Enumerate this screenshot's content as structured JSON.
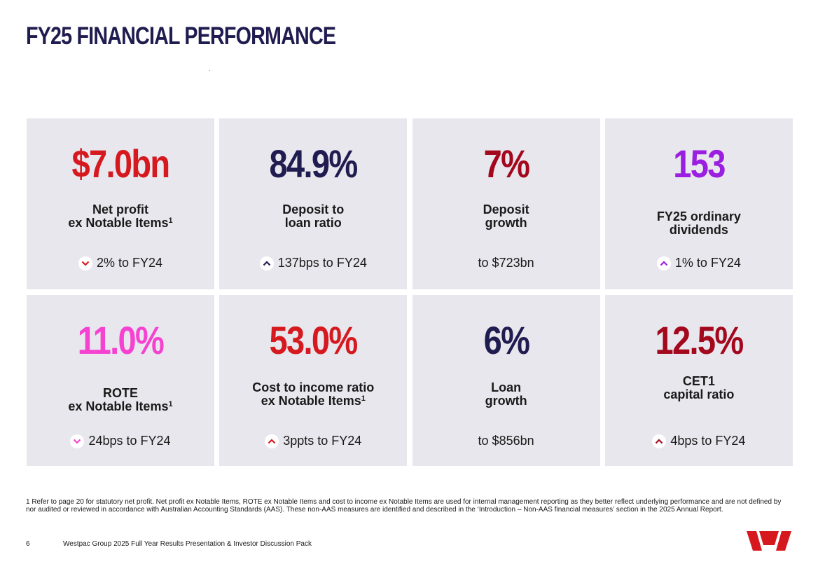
{
  "title": "FY25 FINANCIAL PERFORMANCE",
  "colors": {
    "red": "#d5191e",
    "navy": "#1f1c4f",
    "maroon": "#a3081c",
    "purple": "#9b1fe0",
    "pink": "#f542d1",
    "tile_bg": "#e8e7ee"
  },
  "tiles": [
    {
      "value": "$7.0bn",
      "label_line1": "Net profit",
      "label_line2": "ex Notable Items",
      "sup": "1",
      "change": "2% to FY24",
      "arrow": "chevron-down-icon"
    },
    {
      "value": "84.9%",
      "label_line1": "Deposit to",
      "label_line2": "loan ratio",
      "change": "137bps to FY24",
      "arrow": "chevron-up-icon"
    },
    {
      "value": "7%",
      "label_line1": "Deposit",
      "label_line2": "growth",
      "change": "to $723bn"
    },
    {
      "value": "153",
      "label_line1": "FY25 ordinary",
      "label_line2": "dividends",
      "change": "1% to FY24",
      "arrow": "chevron-up-icon"
    },
    {
      "value": "11.0%",
      "label_line1": "ROTE",
      "label_line2": "ex Notable Items",
      "sup": "1",
      "change": "24bps to FY24",
      "arrow": "chevron-down-icon"
    },
    {
      "value": "53.0%",
      "label_line1": "Cost to income ratio",
      "label_line2": "ex Notable Items",
      "sup": "1",
      "change": "3ppts to FY24",
      "arrow": "chevron-up-icon"
    },
    {
      "value": "6%",
      "label_line1": "Loan",
      "label_line2": "growth",
      "change": "to $856bn"
    },
    {
      "value": "12.5%",
      "label_line1": "CET1",
      "label_line2": "capital ratio",
      "change": "4bps to FY24",
      "arrow": "chevron-up-icon"
    }
  ],
  "footnote": "1 Refer to page 20 for statutory net profit. Net profit ex Notable Items, ROTE ex Notable Items and cost to income ex Notable Items are used for internal management reporting as they better reflect underlying performance and are not defined by nor audited or reviewed in accordance with Australian Accounting Standards (AAS). These non-AAS measures are identified and described in the ‘Introduction – Non-AAS financial measures’ section in the 2025 Annual Report.",
  "footer": {
    "page_number": "6",
    "text": "Westpac Group 2025 Full Year Results Presentation & Investor Discussion Pack"
  },
  "logo": "westpac-logo"
}
